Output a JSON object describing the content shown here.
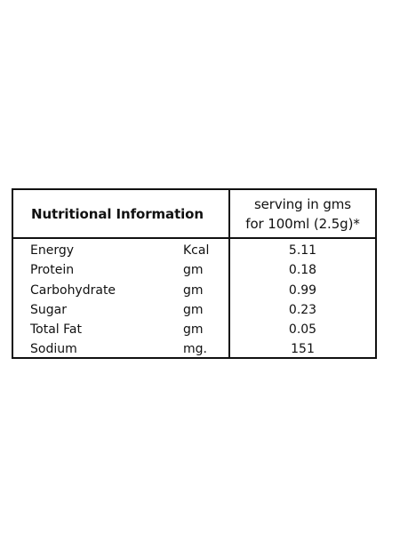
{
  "table": {
    "title": "Nutritional Information",
    "serving_line1": "serving in gms",
    "serving_line2": "for 100ml (2.5g)*",
    "rows": [
      {
        "name": "Energy",
        "unit": "Kcal",
        "value": "5.11"
      },
      {
        "name": "Protein",
        "unit": "gm",
        "value": "0.18"
      },
      {
        "name": "Carbohydrate",
        "unit": "gm",
        "value": "0.99"
      },
      {
        "name": "Sugar",
        "unit": "gm",
        "value": "0.23"
      },
      {
        "name": "Total Fat",
        "unit": "gm",
        "value": "0.05"
      },
      {
        "name": "Sodium",
        "unit": "mg.",
        "value": "151"
      }
    ]
  }
}
